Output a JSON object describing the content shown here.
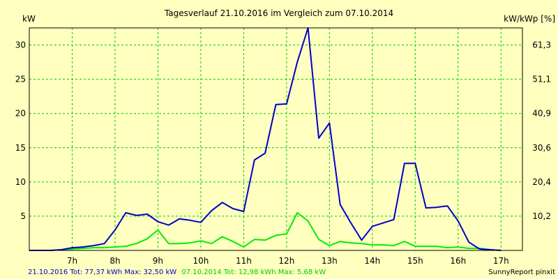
{
  "chart_data": {
    "type": "line",
    "title": "Tagesverlauf 21.10.2016 im Vergleich zum 07.10.2014",
    "ylabel_left": "kW",
    "ylabel_right": "kW/kWp [%]",
    "xlim": [
      6.0,
      17.5
    ],
    "ylim": [
      0,
      32.5
    ],
    "x_ticks": [
      {
        "value": 7,
        "label": "7h"
      },
      {
        "value": 8,
        "label": "8h"
      },
      {
        "value": 9,
        "label": "9h"
      },
      {
        "value": 10,
        "label": "10h"
      },
      {
        "value": 11,
        "label": "11h"
      },
      {
        "value": 12,
        "label": "12h"
      },
      {
        "value": 13,
        "label": "13h"
      },
      {
        "value": 14,
        "label": "14h"
      },
      {
        "value": 15,
        "label": "15h"
      },
      {
        "value": 16,
        "label": "16h"
      },
      {
        "value": 17,
        "label": "17h"
      }
    ],
    "y_ticks_left": [
      {
        "value": 5,
        "label": "5"
      },
      {
        "value": 10,
        "label": "10"
      },
      {
        "value": 15,
        "label": "15"
      },
      {
        "value": 20,
        "label": "20"
      },
      {
        "value": 25,
        "label": "25"
      },
      {
        "value": 30,
        "label": "30"
      }
    ],
    "y_ticks_right": [
      {
        "value": 5,
        "label": "10,2"
      },
      {
        "value": 10,
        "label": "20,4"
      },
      {
        "value": 15,
        "label": "30,6"
      },
      {
        "value": 20,
        "label": "40,9"
      },
      {
        "value": 25,
        "label": "51,1"
      },
      {
        "value": 30,
        "label": "61,3"
      }
    ],
    "grid": true,
    "series": [
      {
        "name": "21.10.2016",
        "color": "#0000cc",
        "x": [
          6.0,
          6.25,
          6.5,
          6.75,
          7.0,
          7.25,
          7.5,
          7.75,
          8.0,
          8.25,
          8.5,
          8.75,
          9.0,
          9.25,
          9.5,
          9.75,
          10.0,
          10.25,
          10.5,
          10.75,
          11.0,
          11.25,
          11.5,
          11.75,
          12.0,
          12.25,
          12.5,
          12.75,
          13.0,
          13.25,
          13.5,
          13.75,
          14.0,
          14.25,
          14.5,
          14.75,
          15.0,
          15.25,
          15.5,
          15.75,
          16.0,
          16.25,
          16.5,
          16.75,
          17.0
        ],
        "values": [
          0.0,
          0.0,
          0.0,
          0.1,
          0.4,
          0.5,
          0.7,
          1.0,
          3.0,
          5.5,
          5.1,
          5.3,
          4.2,
          3.7,
          4.6,
          4.4,
          4.1,
          5.8,
          7.0,
          6.1,
          5.7,
          13.2,
          14.2,
          21.3,
          21.4,
          27.5,
          32.5,
          16.4,
          18.6,
          6.7,
          4.0,
          1.5,
          3.5,
          4.0,
          4.5,
          12.7,
          12.7,
          6.2,
          6.3,
          6.5,
          4.3,
          1.2,
          0.2,
          0.1,
          0.0
        ]
      },
      {
        "name": "07.10.2014",
        "color": "#00ee00",
        "x": [
          6.0,
          6.25,
          6.5,
          6.75,
          7.0,
          7.25,
          7.5,
          7.75,
          8.0,
          8.25,
          8.5,
          8.75,
          9.0,
          9.25,
          9.5,
          9.75,
          10.0,
          10.25,
          10.5,
          10.75,
          11.0,
          11.25,
          11.5,
          11.75,
          12.0,
          12.25,
          12.5,
          12.75,
          13.0,
          13.25,
          13.5,
          13.75,
          14.0,
          14.25,
          14.5,
          14.75,
          15.0,
          15.25,
          15.5,
          15.75,
          16.0,
          16.25,
          16.5,
          16.75,
          17.0
        ],
        "values": [
          0.0,
          0.0,
          0.0,
          0.1,
          0.2,
          0.3,
          0.4,
          0.4,
          0.5,
          0.6,
          1.0,
          1.7,
          3.0,
          1.0,
          1.0,
          1.1,
          1.4,
          1.0,
          2.0,
          1.3,
          0.5,
          1.6,
          1.5,
          2.2,
          2.4,
          5.5,
          4.3,
          1.6,
          0.7,
          1.3,
          1.1,
          1.0,
          0.8,
          0.8,
          0.7,
          1.3,
          0.6,
          0.6,
          0.6,
          0.4,
          0.5,
          0.3,
          0.3,
          0.1,
          0.0
        ]
      }
    ]
  },
  "footer": {
    "series1_label": "21.10.2016 Tot: 77,37 kWh Max: 32,50 kW",
    "series2_label": "07.10.2014 Tot: 12,98 kWh Max: 5,68 kW",
    "credit": "SunnyReport pinxit"
  },
  "colors": {
    "background": "#ffffc0",
    "grid": "#00cc00",
    "series1": "#0000cc",
    "series2": "#00ee00"
  }
}
